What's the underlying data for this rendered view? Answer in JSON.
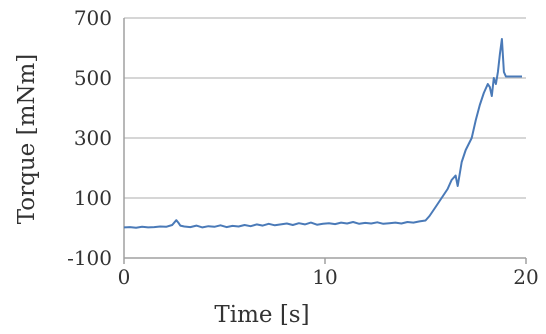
{
  "chart_data": {
    "type": "line",
    "title": "",
    "xlabel": "Time [s]",
    "ylabel": "Torque [mNm]",
    "xlim": [
      0,
      20
    ],
    "ylim": [
      -100,
      700
    ],
    "xticks": [
      0,
      10,
      20
    ],
    "yticks": [
      -100,
      100,
      300,
      500,
      700
    ],
    "grid": "horizontal",
    "legend": "none",
    "colors": {
      "line": "#4a7ab8",
      "grid": "#c8c8c8",
      "axis": "#a0a0a0",
      "text": "#333333"
    },
    "series": [
      {
        "x": [
          0,
          0.3,
          0.6,
          0.9,
          1.2,
          1.5,
          1.8,
          2.1,
          2.4,
          2.6,
          2.7,
          2.8,
          3.0,
          3.3,
          3.6,
          3.9,
          4.2,
          4.5,
          4.8,
          5.1,
          5.4,
          5.7,
          6.0,
          6.3,
          6.6,
          6.9,
          7.2,
          7.5,
          7.8,
          8.1,
          8.4,
          8.7,
          9.0,
          9.3,
          9.6,
          9.9,
          10.2,
          10.5,
          10.8,
          11.1,
          11.4,
          11.7,
          12.0,
          12.3,
          12.6,
          12.9,
          13.2,
          13.5,
          13.8,
          14.1,
          14.4,
          14.7,
          15.0,
          15.2,
          15.5,
          15.8,
          16.1,
          16.3,
          16.5,
          16.6,
          16.8,
          17.0,
          17.3,
          17.5,
          17.7,
          17.9,
          18.1,
          18.2,
          18.3,
          18.4,
          18.5,
          18.6,
          18.7,
          18.8,
          18.9,
          19.0,
          19.2,
          19.5,
          19.8
        ],
        "y": [
          2,
          3,
          1,
          4,
          2,
          3,
          5,
          4,
          10,
          26,
          18,
          8,
          5,
          3,
          8,
          2,
          6,
          4,
          9,
          3,
          7,
          5,
          10,
          6,
          12,
          8,
          14,
          9,
          12,
          15,
          10,
          16,
          12,
          18,
          11,
          14,
          16,
          13,
          18,
          15,
          20,
          14,
          17,
          15,
          19,
          14,
          16,
          18,
          15,
          20,
          18,
          22,
          25,
          40,
          70,
          100,
          130,
          160,
          175,
          140,
          220,
          260,
          300,
          360,
          410,
          450,
          480,
          470,
          440,
          500,
          480,
          520,
          580,
          630,
          520,
          505,
          505,
          505,
          505
        ]
      }
    ]
  }
}
